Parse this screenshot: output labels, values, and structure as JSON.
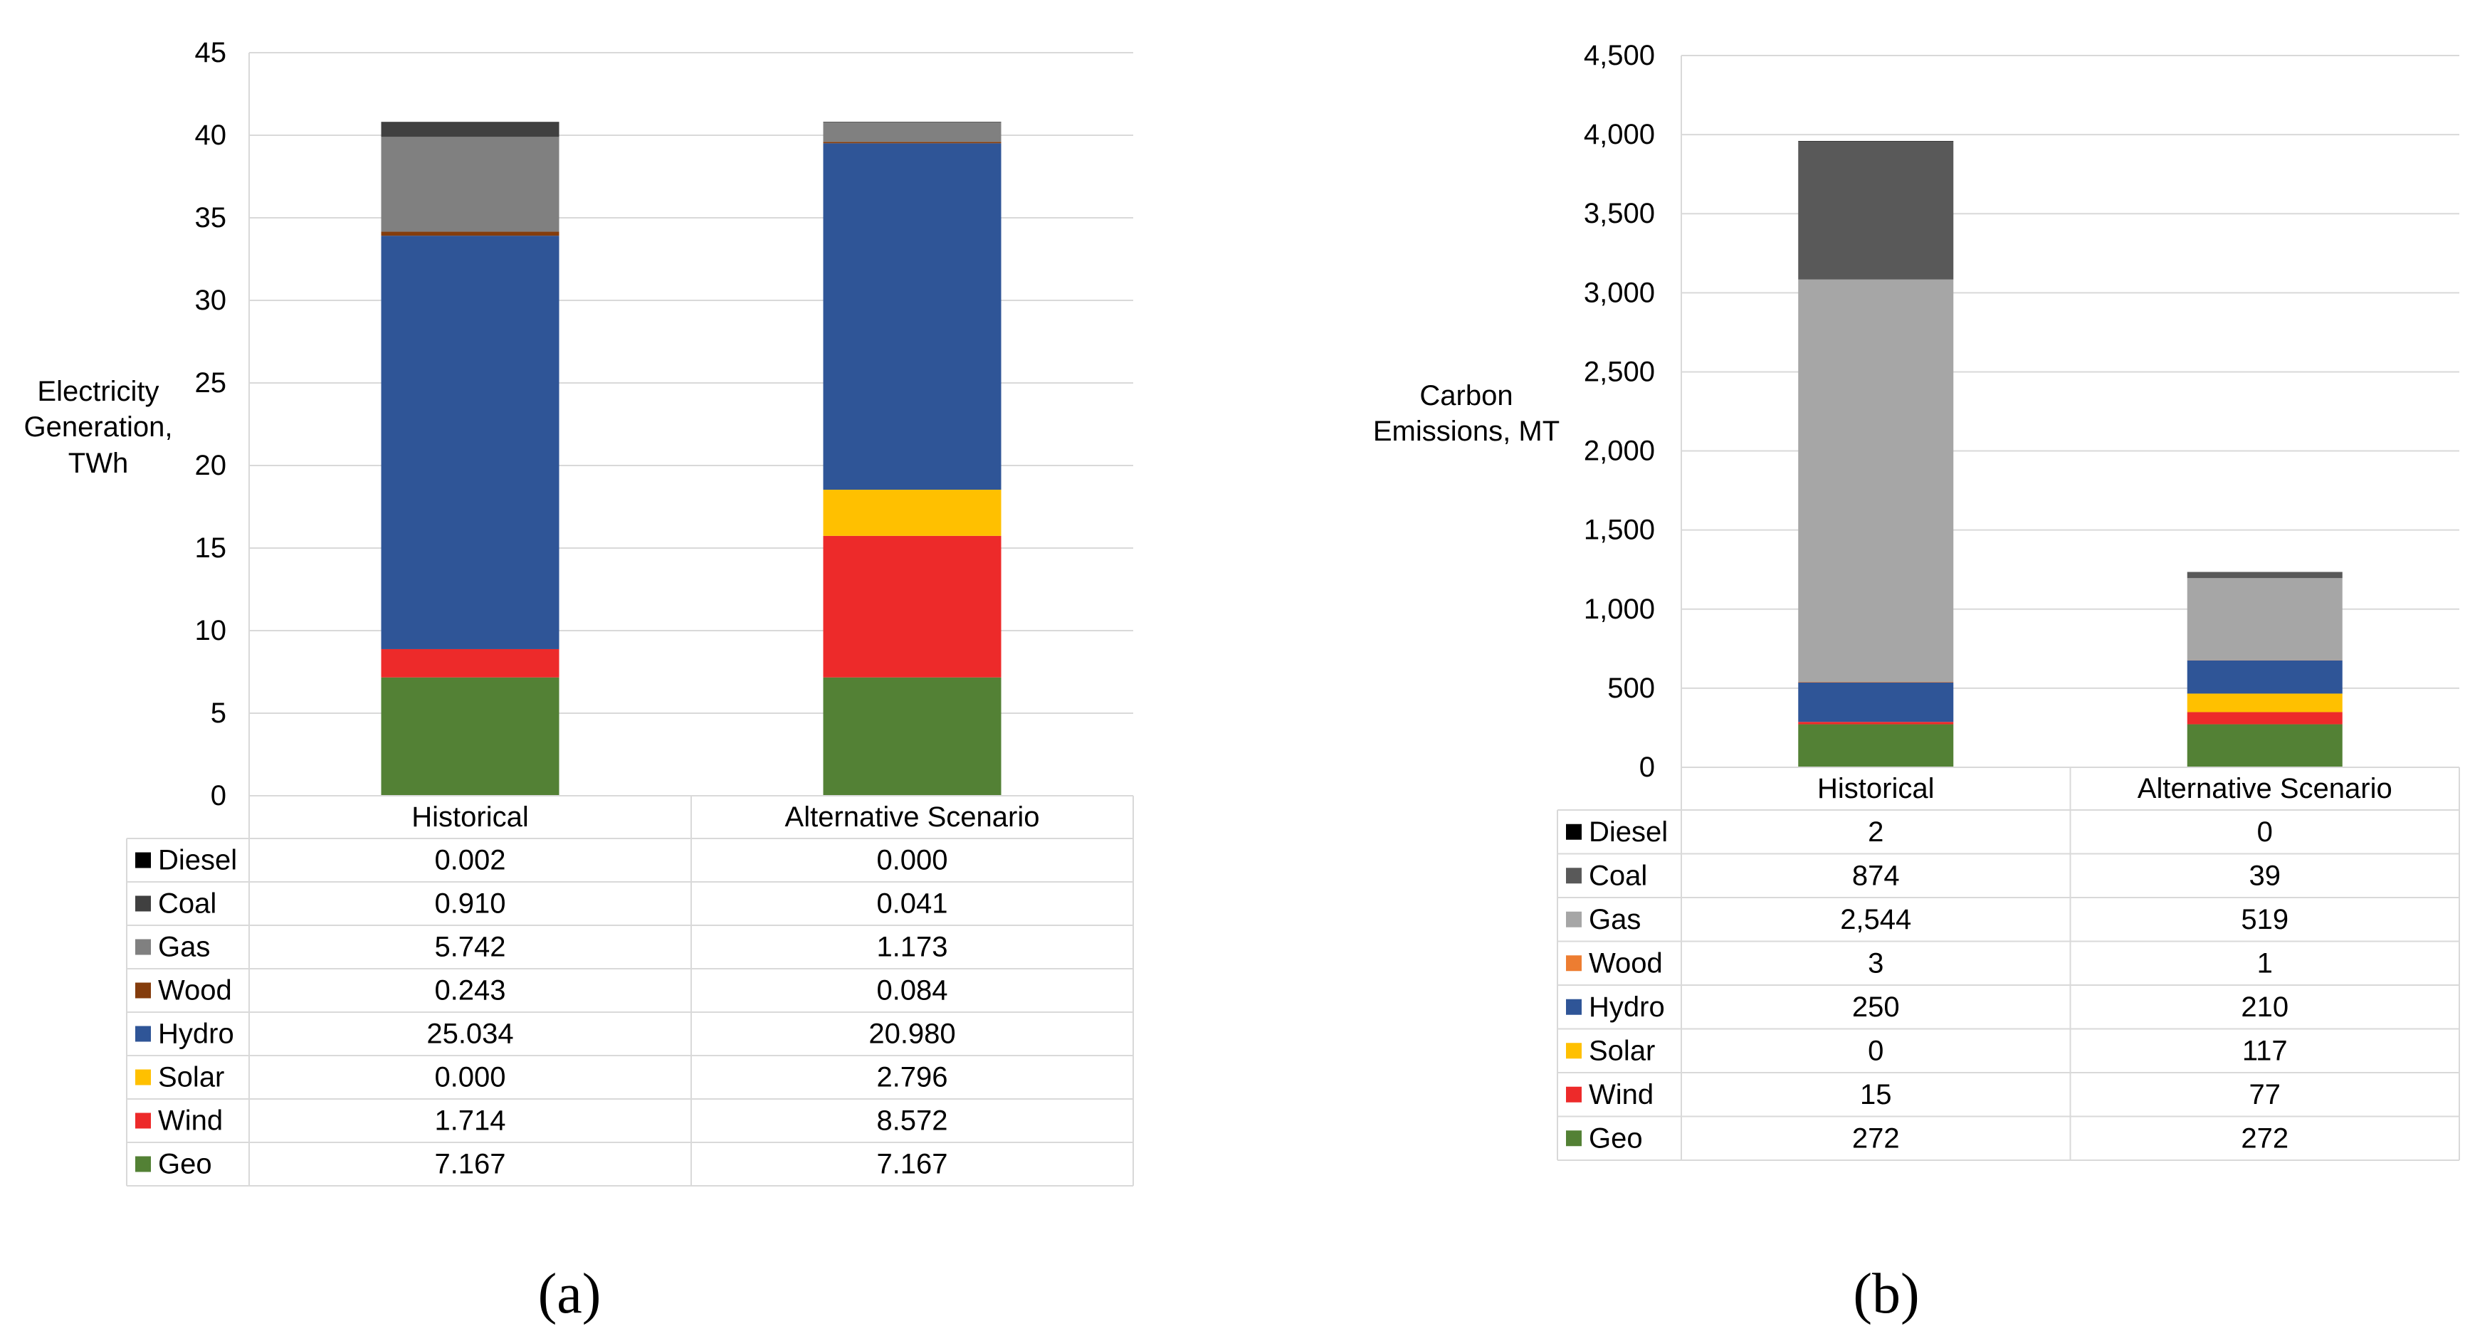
{
  "chart_data": [
    {
      "type": "bar",
      "stacked": true,
      "panel_label": "(a)",
      "ylabel_lines": [
        "Electricity",
        "Generation,",
        "TWh"
      ],
      "categories": [
        "Historical",
        "Alternative Scenario"
      ],
      "ylim": [
        0,
        45
      ],
      "yticks": [
        0,
        5,
        10,
        15,
        20,
        25,
        30,
        35,
        40,
        45
      ],
      "ytick_labels": [
        "0",
        "5",
        "10",
        "15",
        "20",
        "25",
        "30",
        "35",
        "40",
        "45"
      ],
      "grid": true,
      "legend": "data-table-below",
      "series": [
        {
          "name": "Geo",
          "color": "#538135",
          "values": [
            7.167,
            7.167
          ],
          "labels": [
            "7.167",
            "7.167"
          ]
        },
        {
          "name": "Wind",
          "color": "#ed2a2a",
          "values": [
            1.714,
            8.572
          ],
          "labels": [
            "1.714",
            "8.572"
          ]
        },
        {
          "name": "Solar",
          "color": "#ffc000",
          "values": [
            0.0,
            2.796
          ],
          "labels": [
            "0.000",
            "2.796"
          ]
        },
        {
          "name": "Hydro",
          "color": "#2f5597",
          "values": [
            25.034,
            20.98
          ],
          "labels": [
            "25.034",
            "20.980"
          ]
        },
        {
          "name": "Wood",
          "color": "#843c0c",
          "values": [
            0.243,
            0.084
          ],
          "labels": [
            "0.243",
            "0.084"
          ]
        },
        {
          "name": "Gas",
          "color": "#808080",
          "values": [
            5.742,
            1.173
          ],
          "labels": [
            "5.742",
            "1.173"
          ]
        },
        {
          "name": "Coal",
          "color": "#404040",
          "values": [
            0.91,
            0.041
          ],
          "labels": [
            "0.910",
            "0.041"
          ]
        },
        {
          "name": "Diesel",
          "color": "#000000",
          "values": [
            0.002,
            0.0
          ],
          "labels": [
            "0.002",
            "0.000"
          ]
        }
      ]
    },
    {
      "type": "bar",
      "stacked": true,
      "panel_label": "(b)",
      "ylabel_lines": [
        "Carbon",
        "Emissions, MT"
      ],
      "categories": [
        "Historical",
        "Alternative Scenario"
      ],
      "ylim": [
        0,
        4500
      ],
      "yticks": [
        0,
        500,
        1000,
        1500,
        2000,
        2500,
        3000,
        3500,
        4000,
        4500
      ],
      "ytick_labels": [
        "0",
        "500",
        "1,000",
        "1,500",
        "2,000",
        "2,500",
        "3,000",
        "3,500",
        "4,000",
        "4,500"
      ],
      "grid": true,
      "legend": "data-table-below",
      "series": [
        {
          "name": "Geo",
          "color": "#538135",
          "values": [
            272,
            272
          ],
          "labels": [
            "272",
            "272"
          ]
        },
        {
          "name": "Wind",
          "color": "#ed2a2a",
          "values": [
            15,
            77
          ],
          "labels": [
            "15",
            "77"
          ]
        },
        {
          "name": "Solar",
          "color": "#ffc000",
          "values": [
            0,
            117
          ],
          "labels": [
            "0",
            "117"
          ]
        },
        {
          "name": "Hydro",
          "color": "#2f5597",
          "values": [
            250,
            210
          ],
          "labels": [
            "250",
            "210"
          ]
        },
        {
          "name": "Wood",
          "color": "#ed7d31",
          "values": [
            3,
            1
          ],
          "labels": [
            "3",
            "1"
          ]
        },
        {
          "name": "Gas",
          "color": "#a6a6a6",
          "values": [
            2544,
            519
          ],
          "labels": [
            "2,544",
            "519"
          ]
        },
        {
          "name": "Coal",
          "color": "#595959",
          "values": [
            874,
            39
          ],
          "labels": [
            "874",
            "39"
          ]
        },
        {
          "name": "Diesel",
          "color": "#000000",
          "values": [
            2,
            0
          ],
          "labels": [
            "2",
            "0"
          ]
        }
      ]
    }
  ]
}
